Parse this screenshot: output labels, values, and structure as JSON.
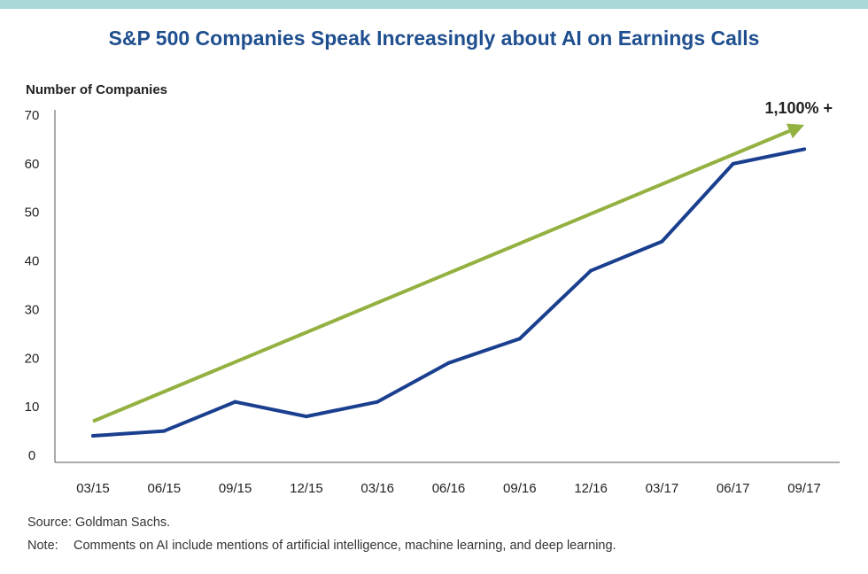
{
  "chart_data": {
    "type": "line",
    "title": "S&P 500 Companies Speak Increasingly about AI on Earnings Calls",
    "ylabel": "Number of Companies",
    "xlabel": "",
    "categories": [
      "03/15",
      "06/15",
      "09/15",
      "12/15",
      "03/16",
      "06/16",
      "09/16",
      "12/16",
      "03/17",
      "06/17",
      "09/17"
    ],
    "ylim": [
      0,
      70
    ],
    "yticks": [
      0,
      10,
      20,
      30,
      40,
      50,
      60,
      70
    ],
    "series": [
      {
        "values": [
          4,
          5,
          11,
          8,
          11,
          19,
          24,
          38,
          44,
          60,
          63
        ],
        "color": "#1a3f8f"
      }
    ],
    "trend_arrow": {
      "from": 7,
      "to": 68,
      "color": "#92b13f"
    },
    "annotation": "1,100% +",
    "grid": false
  },
  "footer": {
    "source": "Source: Goldman Sachs.",
    "note_label": "Note:",
    "note_text": "Comments on AI include mentions of artificial intelligence, machine learning, and deep learning."
  }
}
